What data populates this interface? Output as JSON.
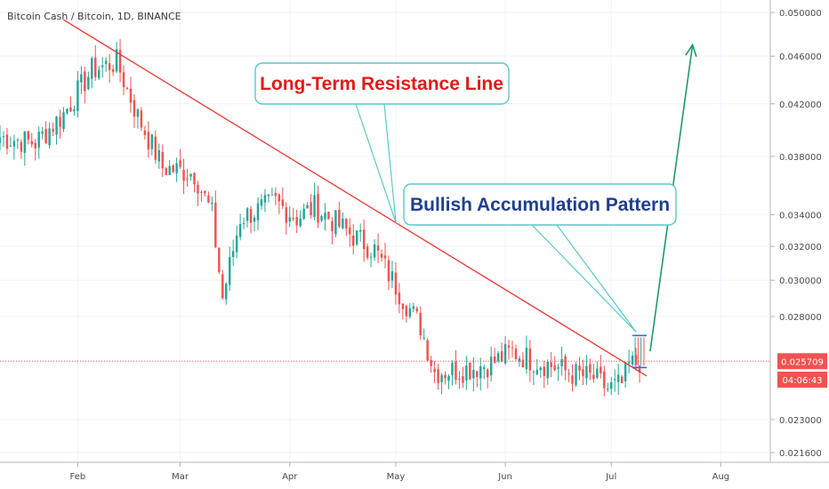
{
  "chart_data": {
    "type": "candlestick",
    "title": "Bitcoin Cash / Bitcoin, 1D, BINANCE",
    "y_scale": "log",
    "ylim": [
      0.0212,
      0.0512
    ],
    "y_ticks": [
      "0.050000",
      "0.046000",
      "0.042000",
      "0.038000",
      "0.034000",
      "0.032000",
      "0.030000",
      "0.028000",
      "0.023000",
      "0.021600"
    ],
    "x_ticks": [
      {
        "date": "2020-02-01",
        "label": "Feb"
      },
      {
        "date": "2020-03-01",
        "label": "Mar"
      },
      {
        "date": "2020-04-01",
        "label": "Apr"
      },
      {
        "date": "2020-05-01",
        "label": "May"
      },
      {
        "date": "2020-06-01",
        "label": "Jun"
      },
      {
        "date": "2020-07-01",
        "label": "Jul"
      },
      {
        "date": "2020-08-01",
        "label": "Aug"
      }
    ],
    "xlim": [
      "2020-01-10",
      "2020-08-15"
    ],
    "last_price": {
      "label": "0.025709",
      "value": 0.025709,
      "countdown": "04:06:43",
      "color": "#ef5350"
    },
    "colors": {
      "up": "#26a69a",
      "down": "#ef5350",
      "resistance": "#e53935",
      "forecast": "#1e9a6a",
      "callout_border": "#5ac8c8",
      "callout_text_red": "#e01b1b",
      "callout_text_blue": "#1f3f8f",
      "box": "#2962ff"
    },
    "key_prices": [
      {
        "date": "2020-01-10",
        "close": 0.0394
      },
      {
        "date": "2020-01-20",
        "close": 0.039
      },
      {
        "date": "2020-01-28",
        "close": 0.0412
      },
      {
        "date": "2020-02-05",
        "close": 0.0448
      },
      {
        "date": "2020-02-12",
        "close": 0.0455
      },
      {
        "date": "2020-02-18",
        "close": 0.041
      },
      {
        "date": "2020-02-25",
        "close": 0.0372
      },
      {
        "date": "2020-03-05",
        "close": 0.0368
      },
      {
        "date": "2020-03-10",
        "close": 0.034
      },
      {
        "date": "2020-03-13",
        "close": 0.029
      },
      {
        "date": "2020-03-18",
        "close": 0.0338
      },
      {
        "date": "2020-03-28",
        "close": 0.0348
      },
      {
        "date": "2020-04-03",
        "close": 0.0338
      },
      {
        "date": "2020-04-08",
        "close": 0.0345
      },
      {
        "date": "2020-04-18",
        "close": 0.0328
      },
      {
        "date": "2020-04-25",
        "close": 0.0318
      },
      {
        "date": "2020-05-03",
        "close": 0.029
      },
      {
        "date": "2020-05-08",
        "close": 0.0275
      },
      {
        "date": "2020-05-12",
        "close": 0.0252
      },
      {
        "date": "2020-05-20",
        "close": 0.0253
      },
      {
        "date": "2020-05-28",
        "close": 0.0256
      },
      {
        "date": "2020-06-03",
        "close": 0.0262
      },
      {
        "date": "2020-06-08",
        "close": 0.0258
      },
      {
        "date": "2020-06-14",
        "close": 0.0255
      },
      {
        "date": "2020-06-20",
        "close": 0.0251
      },
      {
        "date": "2020-06-26",
        "close": 0.0249
      },
      {
        "date": "2020-06-30",
        "close": 0.0244
      },
      {
        "date": "2020-07-04",
        "close": 0.0246
      },
      {
        "date": "2020-07-06",
        "close": 0.0255
      },
      {
        "date": "2020-07-09",
        "close": 0.0257
      }
    ],
    "resistance_line": [
      {
        "date": "2020-01-28",
        "value": 0.0493
      },
      {
        "date": "2020-07-11",
        "value": 0.025
      }
    ],
    "accumulation_box": {
      "from": "2020-07-07",
      "to": "2020-07-11",
      "top": 0.027,
      "bottom": 0.0254
    },
    "forecast_arrow": [
      {
        "date": "2020-07-12",
        "value": 0.0262
      },
      {
        "date": "2020-07-24",
        "value": 0.047
      }
    ],
    "annotations": [
      {
        "text": "Long-Term Resistance Line",
        "color": "red"
      },
      {
        "text": "Bullish Accumulation Pattern",
        "color": "blue"
      }
    ]
  }
}
